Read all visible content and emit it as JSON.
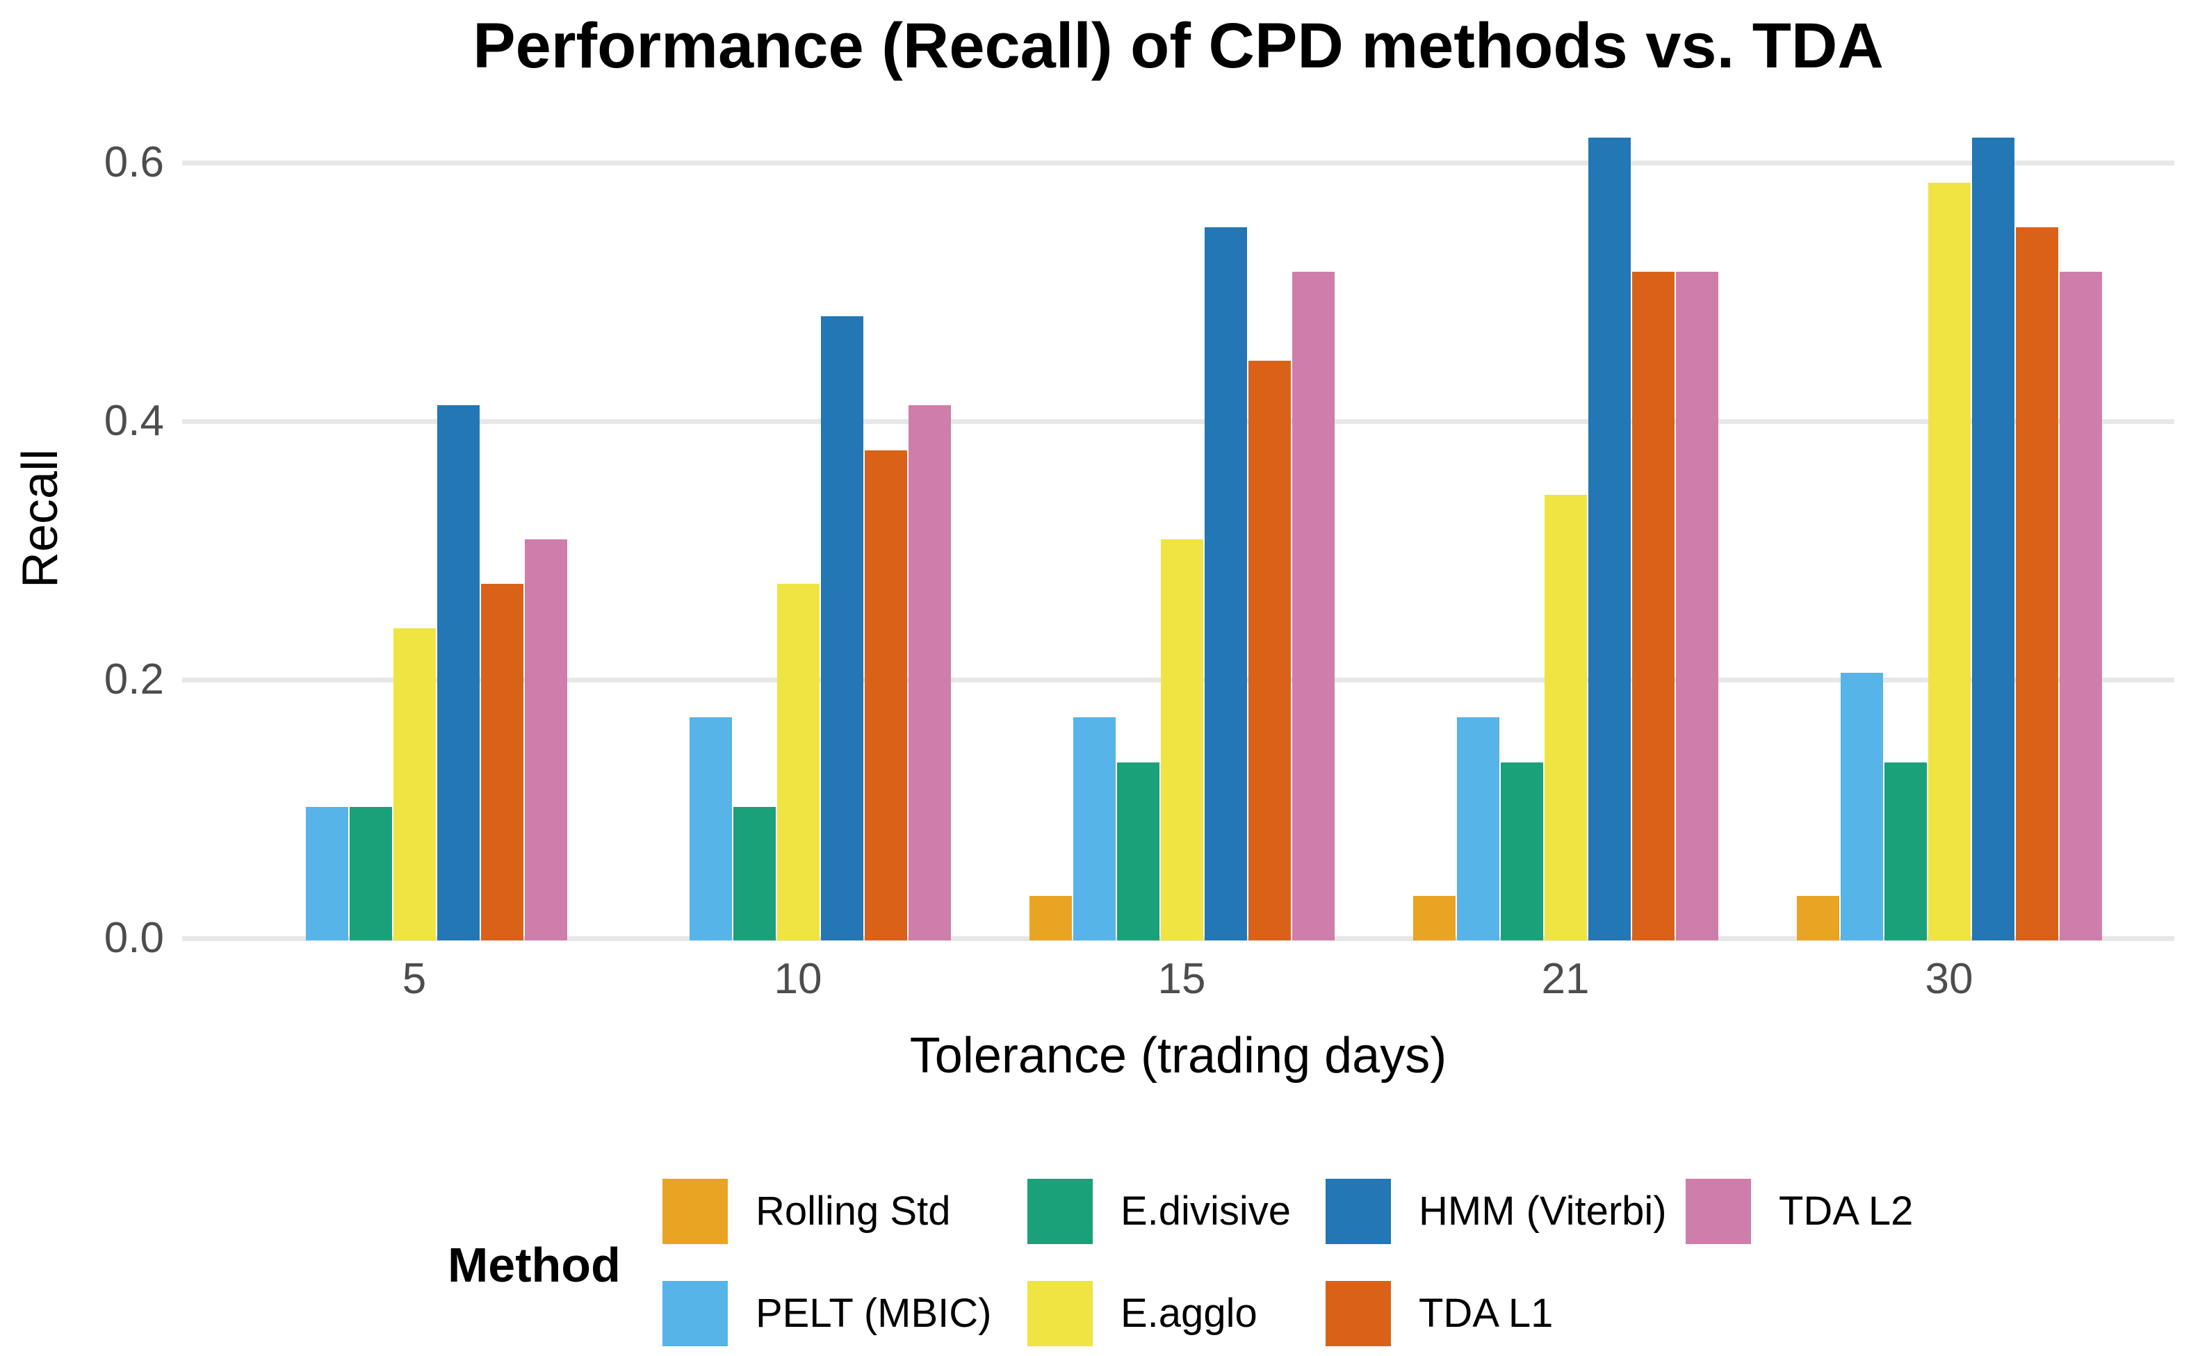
{
  "chart_data": {
    "type": "bar",
    "title": "Performance (Recall) of CPD methods vs. TDA",
    "xlabel": "Tolerance (trading days)",
    "ylabel": "Recall",
    "categories": [
      "5",
      "10",
      "15",
      "21",
      "30"
    ],
    "series": [
      {
        "name": "Rolling Std",
        "color": "#E9A424",
        "values": [
          0,
          0,
          0.0345,
          0.0345,
          0.0345
        ]
      },
      {
        "name": "PELT (MBIC)",
        "color": "#56B4E9",
        "values": [
          0.1034,
          0.1724,
          0.1724,
          0.1724,
          0.2069
        ]
      },
      {
        "name": "E.divisive",
        "color": "#1AA179",
        "values": [
          0.1034,
          0.1034,
          0.1379,
          0.1379,
          0.1379
        ]
      },
      {
        "name": "E.agglo",
        "color": "#F0E442",
        "values": [
          0.2414,
          0.2759,
          0.3103,
          0.3448,
          0.5862
        ]
      },
      {
        "name": "HMM (Viterbi)",
        "color": "#2277B4",
        "values": [
          0.4138,
          0.4828,
          0.5517,
          0.6207,
          0.6207
        ]
      },
      {
        "name": "TDA L1",
        "color": "#DA6218",
        "values": [
          0.2759,
          0.3793,
          0.4483,
          0.5172,
          0.5517
        ]
      },
      {
        "name": "TDA L2",
        "color": "#CF7DAB",
        "values": [
          0.3103,
          0.4138,
          0.5172,
          0.5172,
          0.5172
        ]
      }
    ],
    "yticks": [
      0.0,
      0.2,
      0.4,
      0.6
    ],
    "ytick_labels": [
      "0.0",
      "0.2",
      "0.4",
      "0.6"
    ],
    "ylim": [
      0,
      0.65
    ],
    "grid": "horizontal-only",
    "background": "#ffffff",
    "gridline_color": "#e7e7e7",
    "tick_label_color": "#4d4d4d",
    "legend": {
      "title": "Method",
      "position": "bottom",
      "columns": [
        [
          "Rolling Std",
          "PELT (MBIC)"
        ],
        [
          "E.divisive",
          "E.agglo"
        ],
        [
          "HMM (Viterbi)",
          "TDA L1"
        ],
        [
          "TDA L2"
        ]
      ]
    }
  }
}
